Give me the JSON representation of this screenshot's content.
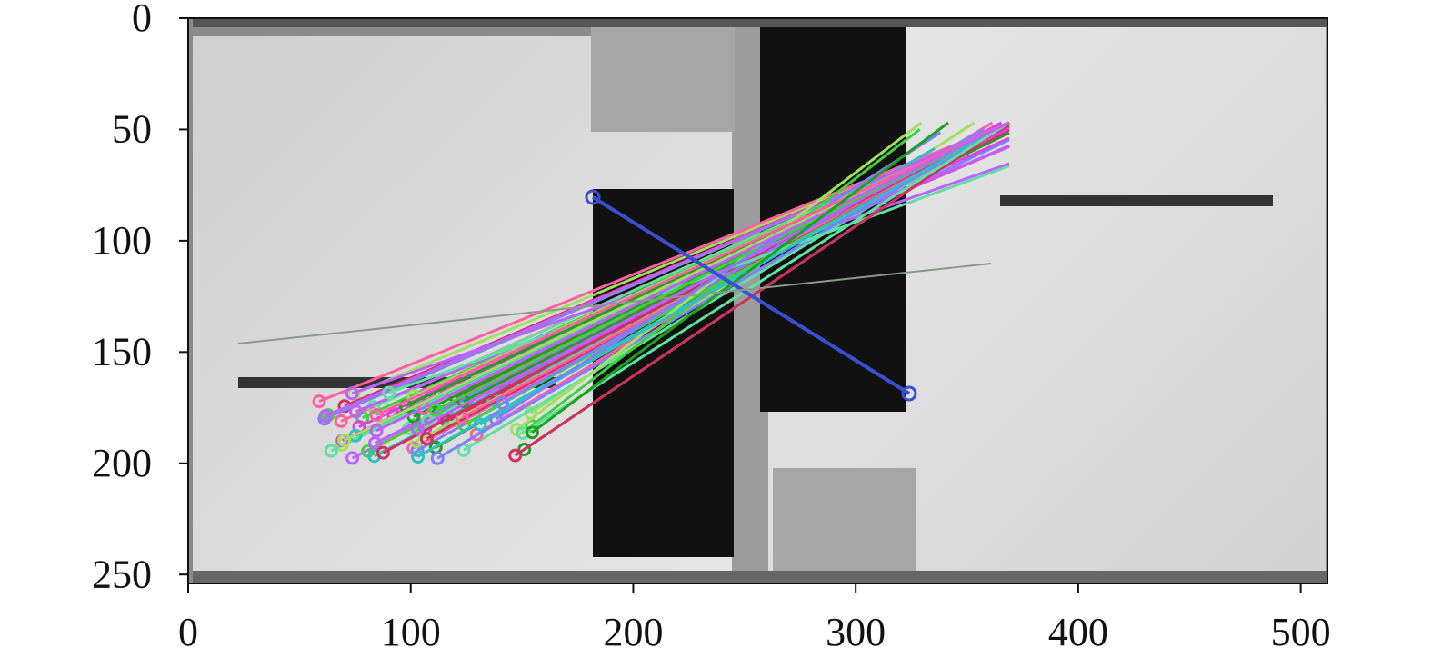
{
  "chart_data": {
    "type": "image",
    "xlim": [
      0,
      512
    ],
    "ylim": [
      254,
      0
    ],
    "xticks": [
      0,
      100,
      200,
      300,
      400,
      500
    ],
    "yticks": [
      0,
      50,
      100,
      150,
      200,
      250
    ]
  }
}
